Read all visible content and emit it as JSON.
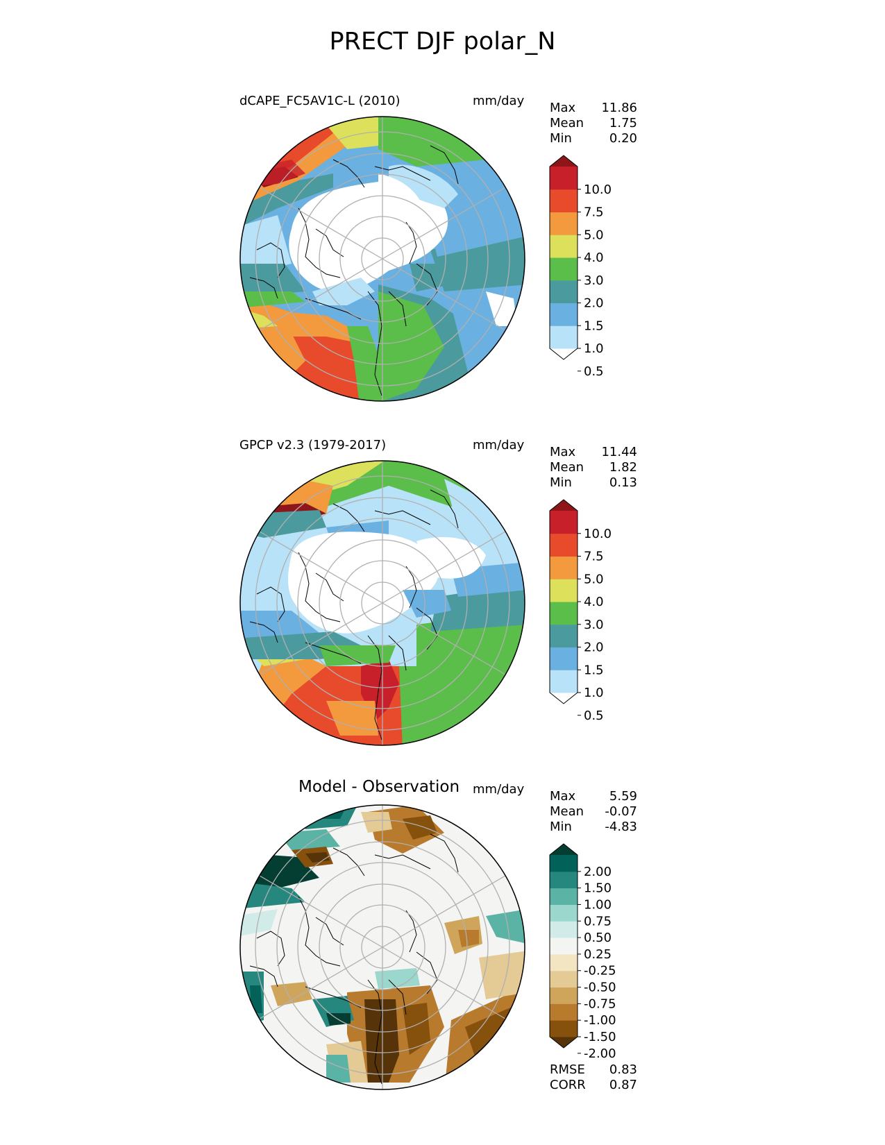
{
  "title": "PRECT DJF polar_N",
  "panels": [
    {
      "id": "model",
      "left_label": "dCAPE_FC5AV1C-L (2010)",
      "units": "mm/day",
      "stats": [
        {
          "label": "Max",
          "value": "11.86"
        },
        {
          "label": "Mean",
          "value": "1.75"
        },
        {
          "label": "Min",
          "value": "0.20"
        }
      ],
      "colorbar": {
        "labels": [
          "10.0",
          "7.5",
          "5.0",
          "4.0",
          "3.0",
          "2.0",
          "1.5",
          "1.0",
          "0.5"
        ],
        "colors": [
          "#ffffff",
          "#b8e2f8",
          "#6ab0e0",
          "#4a9a9e",
          "#5bbd4a",
          "#dde05a",
          "#f39a3e",
          "#e84a2c",
          "#c8202a",
          "#8e1519"
        ]
      }
    },
    {
      "id": "obs",
      "left_label": "GPCP v2.3 (1979-2017)",
      "units": "mm/day",
      "stats": [
        {
          "label": "Max",
          "value": "11.44"
        },
        {
          "label": "Mean",
          "value": "1.82"
        },
        {
          "label": "Min",
          "value": "0.13"
        }
      ],
      "colorbar": {
        "labels": [
          "10.0",
          "7.5",
          "5.0",
          "4.0",
          "3.0",
          "2.0",
          "1.5",
          "1.0",
          "0.5"
        ],
        "colors": [
          "#ffffff",
          "#b8e2f8",
          "#6ab0e0",
          "#4a9a9e",
          "#5bbd4a",
          "#dde05a",
          "#f39a3e",
          "#e84a2c",
          "#c8202a",
          "#8e1519"
        ]
      }
    },
    {
      "id": "diff",
      "center_label": "Model - Observation",
      "units": "mm/day",
      "stats": [
        {
          "label": "Max",
          "value": "5.59"
        },
        {
          "label": "Mean",
          "value": "-0.07"
        },
        {
          "label": "Min",
          "value": "-4.83"
        }
      ],
      "colorbar": {
        "labels": [
          "2.00",
          "1.50",
          "1.00",
          "0.75",
          "0.50",
          "0.25",
          "-0.25",
          "-0.50",
          "-0.75",
          "-1.00",
          "-1.50",
          "-2.00"
        ],
        "colors": [
          "#573309",
          "#86500d",
          "#b87a2d",
          "#cfa55c",
          "#e4ca95",
          "#f3e4c2",
          "#f4f4f2",
          "#d1ece8",
          "#9bd7cd",
          "#5bb3a6",
          "#25877d",
          "#02625a",
          "#043d32"
        ]
      },
      "footer_stats": [
        {
          "label": "RMSE",
          "value": "0.83"
        },
        {
          "label": "CORR",
          "value": "0.87"
        }
      ]
    }
  ]
}
